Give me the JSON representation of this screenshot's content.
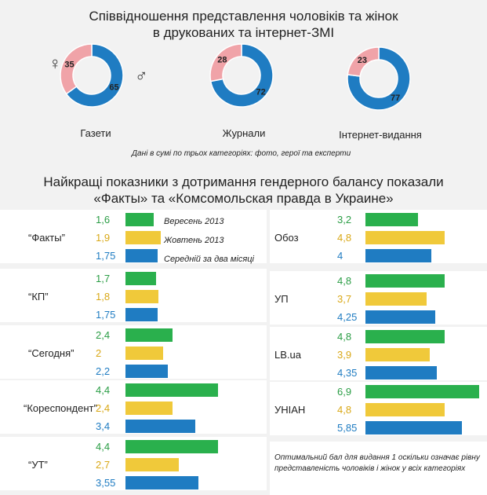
{
  "title_top": [
    "Співвідношення представлення чоловіків та жінок",
    "в друкованих та інтернет-ЗМІ"
  ],
  "title_mid": [
    "Найкращі показники з дотримання гендерного балансу показали",
    "«Факты» та «Комсомольская правда в Украине»"
  ],
  "note_sum": "Дані в сумі по трьох категоріях: фото, герої та експерти",
  "footnote": "Оптимальний бал для видання 1 оскільки означає рівну представленість чоловіків і жінок у всіх категоріях",
  "symbols": {
    "female": "♀",
    "male": "♂"
  },
  "colors": {
    "female": "#f0a3a8",
    "male": "#1f7cc2",
    "green": "#2ab04d",
    "yellow": "#f0c93a",
    "blue": "#1f7cc2",
    "green_text": "#2a9d45",
    "yellow_text": "#d9a817",
    "blue_text": "#1f7cc2"
  },
  "chart_data": [
    {
      "type": "pie",
      "title": "Співвідношення представлення чоловіків та жінок в друкованих та інтернет-ЗМІ",
      "charts": [
        {
          "label": "Газети",
          "female": 35,
          "male": 65
        },
        {
          "label": "Журнали",
          "female": 28,
          "male": 72
        },
        {
          "label": "Інтернет-видання",
          "female": 23,
          "male": 77
        }
      ]
    },
    {
      "type": "bar",
      "title": "Найкращі показники з дотримання гендерного балансу показали «Факты» та «Комсомольская правда в Украине»",
      "series": [
        {
          "name": "Вересень 2013"
        },
        {
          "name": "Жовтень 2013"
        },
        {
          "name": "Середній за два місяці"
        }
      ],
      "left": [
        {
          "name": "“Факты”",
          "values": [
            1.6,
            1.9,
            1.75
          ],
          "labels": [
            "1,6",
            "1,9",
            "1,75"
          ]
        },
        {
          "name": "“КП”",
          "values": [
            1.7,
            1.8,
            1.75
          ],
          "labels": [
            "1,7",
            "1,8",
            "1,75"
          ]
        },
        {
          "name": "“Сегодня”",
          "values": [
            2.4,
            2,
            2.2
          ],
          "labels": [
            "2,4",
            "2",
            "2,2"
          ]
        },
        {
          "name": "“Кореспондент”",
          "values": [
            4.4,
            2.4,
            3.4
          ],
          "labels": [
            "4,4",
            "2,4",
            "3,4"
          ]
        },
        {
          "name": "“УТ”",
          "values": [
            4.4,
            2.7,
            3.55
          ],
          "labels": [
            "4,4",
            "2,7",
            "3,55"
          ]
        }
      ],
      "right": [
        {
          "name": "Обоз",
          "values": [
            3.2,
            4.8,
            4
          ],
          "labels": [
            "3,2",
            "4,8",
            "4"
          ]
        },
        {
          "name": "УП",
          "values": [
            4.8,
            3.7,
            4.25
          ],
          "labels": [
            "4,8",
            "3,7",
            "4,25"
          ]
        },
        {
          "name": "LB.ua",
          "values": [
            4.8,
            3.9,
            4.35
          ],
          "labels": [
            "4,8",
            "3,9",
            "4,35"
          ]
        },
        {
          "name": "УНІАН",
          "values": [
            6.9,
            4.8,
            5.85
          ],
          "labels": [
            "6,9",
            "4,8",
            "5,85"
          ]
        }
      ]
    }
  ]
}
